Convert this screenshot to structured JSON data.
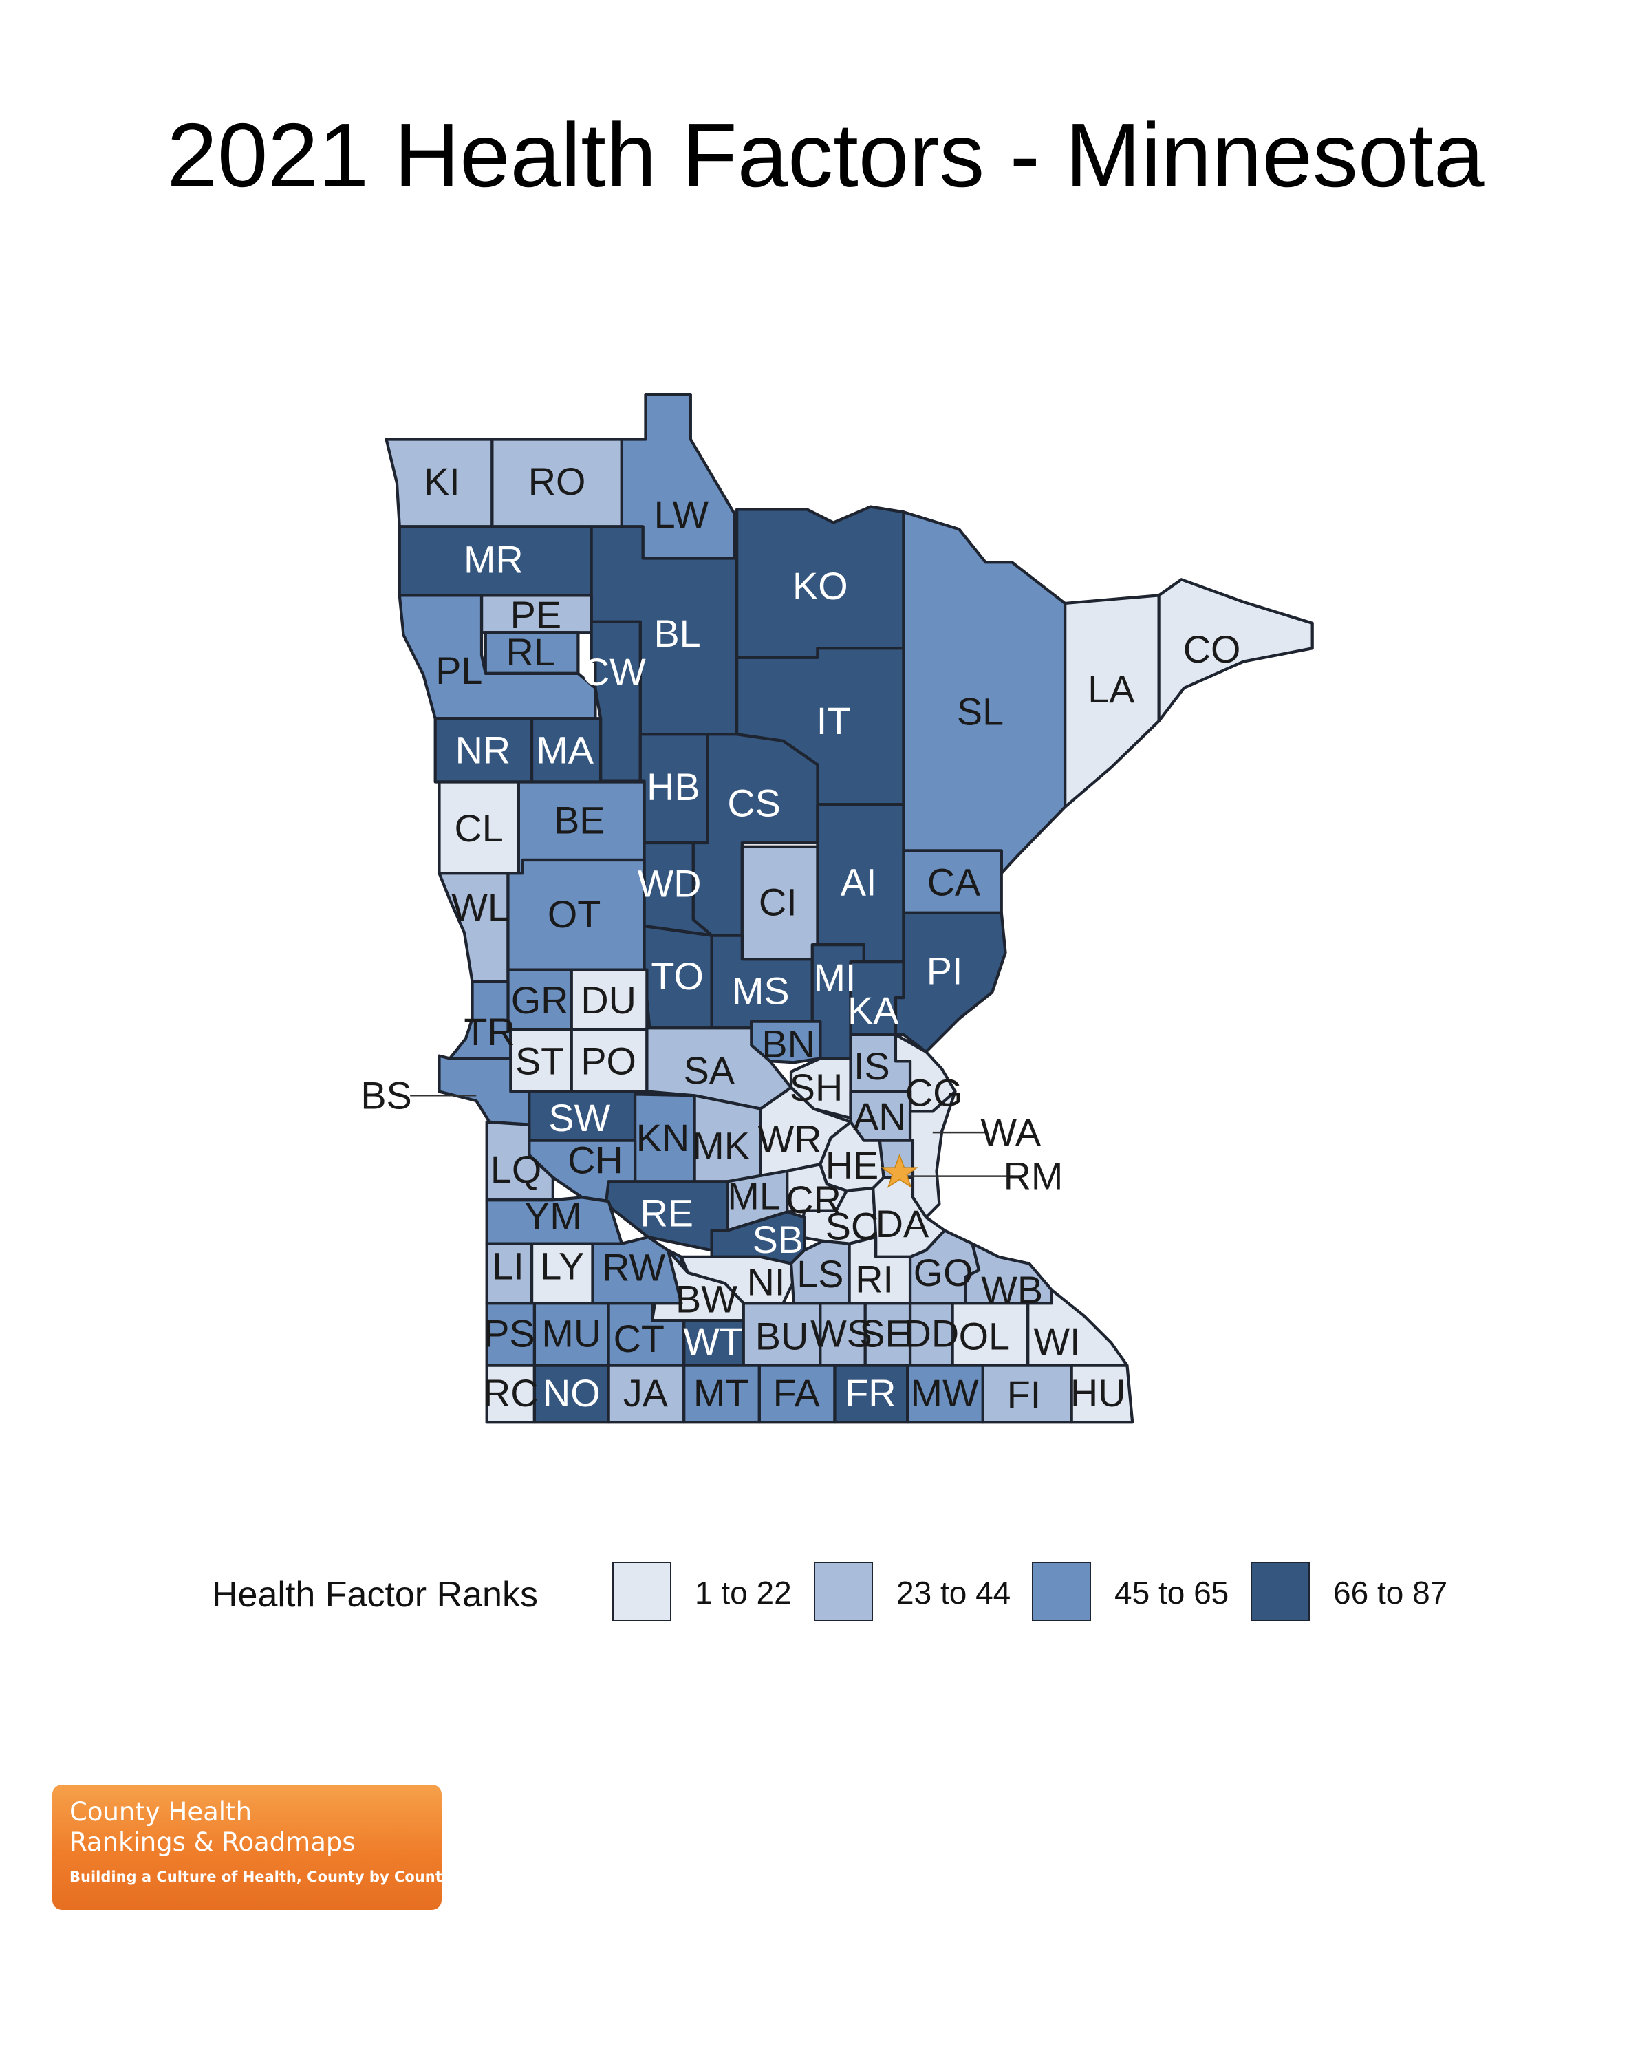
{
  "title": "2021 Health Factors - Minnesota",
  "legend": {
    "title": "Health Factor Ranks",
    "classes": [
      {
        "label": "1 to 22",
        "color": "#e1e8f2"
      },
      {
        "label": "23 to 44",
        "color": "#a9bcd9"
      },
      {
        "label": "45 to 65",
        "color": "#6b90c0"
      },
      {
        "label": "66 to 87",
        "color": "#34567f"
      }
    ]
  },
  "counties": [
    {
      "code": "KI",
      "class": 1
    },
    {
      "code": "RO",
      "class": 1
    },
    {
      "code": "LW",
      "class": 2
    },
    {
      "code": "MR",
      "class": 3
    },
    {
      "code": "BL",
      "class": 3
    },
    {
      "code": "KO",
      "class": 3
    },
    {
      "code": "PE",
      "class": 1
    },
    {
      "code": "RL",
      "class": 2
    },
    {
      "code": "PL",
      "class": 2
    },
    {
      "code": "CW",
      "class": 3
    },
    {
      "code": "LA",
      "class": 0
    },
    {
      "code": "CO",
      "class": 0
    },
    {
      "code": "SL",
      "class": 2
    },
    {
      "code": "IT",
      "class": 3
    },
    {
      "code": "NR",
      "class": 3
    },
    {
      "code": "MA",
      "class": 3
    },
    {
      "code": "HB",
      "class": 3
    },
    {
      "code": "CS",
      "class": 3
    },
    {
      "code": "CL",
      "class": 0
    },
    {
      "code": "BE",
      "class": 2
    },
    {
      "code": "WD",
      "class": 3
    },
    {
      "code": "AI",
      "class": 3
    },
    {
      "code": "CA",
      "class": 2
    },
    {
      "code": "CI",
      "class": 1
    },
    {
      "code": "WL",
      "class": 1
    },
    {
      "code": "OT",
      "class": 2
    },
    {
      "code": "TO",
      "class": 3
    },
    {
      "code": "MS",
      "class": 3
    },
    {
      "code": "MI",
      "class": 3
    },
    {
      "code": "PI",
      "class": 3
    },
    {
      "code": "KA",
      "class": 3
    },
    {
      "code": "GR",
      "class": 2
    },
    {
      "code": "DU",
      "class": 0
    },
    {
      "code": "TR",
      "class": 2
    },
    {
      "code": "BN",
      "class": 2
    },
    {
      "code": "ST",
      "class": 0
    },
    {
      "code": "PO",
      "class": 0
    },
    {
      "code": "SA",
      "class": 1
    },
    {
      "code": "IS",
      "class": 1
    },
    {
      "code": "SH",
      "class": 0
    },
    {
      "code": "CG",
      "class": 0
    },
    {
      "code": "BS",
      "class": 2
    },
    {
      "code": "SW",
      "class": 3
    },
    {
      "code": "KN",
      "class": 2
    },
    {
      "code": "AN",
      "class": 1
    },
    {
      "code": "WA",
      "class": 0
    },
    {
      "code": "MK",
      "class": 1
    },
    {
      "code": "WR",
      "class": 0
    },
    {
      "code": "CH",
      "class": 2
    },
    {
      "code": "HE",
      "class": 0
    },
    {
      "code": "RM",
      "class": 1
    },
    {
      "code": "LQ",
      "class": 1
    },
    {
      "code": "ML",
      "class": 1
    },
    {
      "code": "CR",
      "class": 0
    },
    {
      "code": "RE",
      "class": 3
    },
    {
      "code": "YM",
      "class": 2
    },
    {
      "code": "SC",
      "class": 0
    },
    {
      "code": "DA",
      "class": 0
    },
    {
      "code": "SB",
      "class": 3
    },
    {
      "code": "LI",
      "class": 1
    },
    {
      "code": "LY",
      "class": 0
    },
    {
      "code": "RW",
      "class": 2
    },
    {
      "code": "NI",
      "class": 0
    },
    {
      "code": "LS",
      "class": 1
    },
    {
      "code": "RI",
      "class": 0
    },
    {
      "code": "GO",
      "class": 1
    },
    {
      "code": "WB",
      "class": 1
    },
    {
      "code": "BW",
      "class": 0
    },
    {
      "code": "PS",
      "class": 2
    },
    {
      "code": "MU",
      "class": 2
    },
    {
      "code": "CT",
      "class": 2
    },
    {
      "code": "WT",
      "class": 3
    },
    {
      "code": "BU",
      "class": 1
    },
    {
      "code": "WS",
      "class": 1
    },
    {
      "code": "SE",
      "class": 1
    },
    {
      "code": "DD",
      "class": 1
    },
    {
      "code": "OL",
      "class": 0
    },
    {
      "code": "WI",
      "class": 0
    },
    {
      "code": "RC",
      "class": 0
    },
    {
      "code": "NO",
      "class": 3
    },
    {
      "code": "JA",
      "class": 1
    },
    {
      "code": "MT",
      "class": 2
    },
    {
      "code": "FA",
      "class": 2
    },
    {
      "code": "FR",
      "class": 3
    },
    {
      "code": "MW",
      "class": 2
    },
    {
      "code": "FI",
      "class": 1
    },
    {
      "code": "HU",
      "class": 0
    }
  ],
  "logo": {
    "line1": "County Health",
    "line2": "Rankings & Roadmaps",
    "tagline": "Building a Culture of Health, County by County"
  }
}
